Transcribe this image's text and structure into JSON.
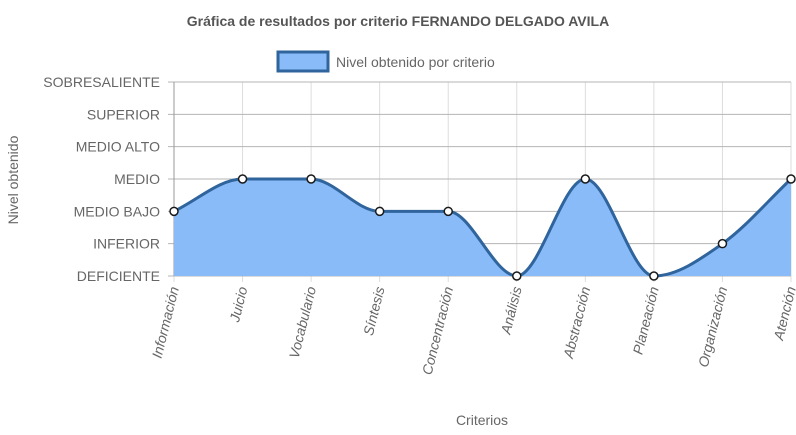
{
  "chart_data": {
    "type": "line",
    "title": "Gráfica de resultados por criterio FERNANDO DELGADO AVILA",
    "xlabel": "Criterios",
    "ylabel": "Nivel obtenido",
    "categories": [
      "Información",
      "Juicio",
      "Vocabulario",
      "Síntesis",
      "Concentración",
      "Análisis",
      "Abstracción",
      "Planeación",
      "Organización",
      "Atención"
    ],
    "y_levels": [
      "DEFICIENTE",
      "INFERIOR",
      "MEDIO BAJO",
      "MEDIO",
      "MEDIO ALTO",
      "SUPERIOR",
      "SOBRESALIENTE"
    ],
    "ylim": [
      0,
      6
    ],
    "series": [
      {
        "name": "Nivel obtenido por criterio",
        "values": [
          2,
          3,
          3,
          2,
          2,
          0,
          3,
          0,
          1,
          3
        ],
        "fill": true
      }
    ],
    "legend_position": "top",
    "grid": true,
    "colors": {
      "line": "#30649c",
      "fill": "#88bbf7",
      "point_fill": "#ffffff",
      "point_stroke": "#1a1a1a"
    }
  }
}
